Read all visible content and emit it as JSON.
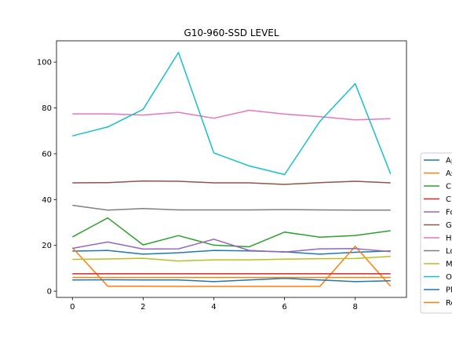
{
  "chart_data": {
    "type": "line",
    "title": "G10-960-SSD LEVEL",
    "xlabel": "",
    "ylabel": "",
    "xlim": [
      -0.45,
      9.45
    ],
    "ylim": [
      -2.7,
      109.3
    ],
    "xticks": [
      0,
      2,
      4,
      6,
      8
    ],
    "yticks": [
      0,
      20,
      40,
      60,
      80,
      100
    ],
    "x": [
      0,
      1,
      2,
      3,
      4,
      5,
      6,
      7,
      8,
      9
    ],
    "grid": false,
    "legend_position": "right",
    "series": [
      {
        "name": "Ap",
        "color": "#1f77b4",
        "values": [
          17.5,
          17.8,
          16.2,
          16.8,
          17.8,
          17.6,
          17.2,
          16.2,
          17.0,
          17.6
        ]
      },
      {
        "name": "As",
        "color": "#ff7f0e",
        "values": [
          19.0,
          2.2,
          2.2,
          2.1,
          2.1,
          2.1,
          2.1,
          2.1,
          19.6,
          2.2
        ]
      },
      {
        "name": "C",
        "color": "#2ca02c",
        "values": [
          23.7,
          32.0,
          20.2,
          24.3,
          20.1,
          19.4,
          25.8,
          23.6,
          24.3,
          26.4
        ]
      },
      {
        "name": "C",
        "color": "#d62728",
        "values": [
          7.6,
          7.6,
          7.6,
          7.6,
          7.6,
          7.6,
          7.6,
          7.6,
          7.6,
          7.6
        ]
      },
      {
        "name": "Fo",
        "color": "#9467bd",
        "values": [
          18.7,
          21.5,
          18.4,
          18.5,
          22.7,
          17.8,
          17.1,
          18.5,
          18.6,
          17.3
        ]
      },
      {
        "name": "G",
        "color": "#8c564b",
        "values": [
          47.3,
          47.4,
          48.1,
          48.0,
          47.3,
          47.3,
          46.6,
          47.4,
          48.0,
          47.3
        ]
      },
      {
        "name": "H",
        "color": "#e377c2",
        "values": [
          77.4,
          77.4,
          76.9,
          78.1,
          75.5,
          79.0,
          77.3,
          76.2,
          74.8,
          75.3
        ]
      },
      {
        "name": "Lo",
        "color": "#7f7f7f",
        "values": [
          37.5,
          35.4,
          36.1,
          35.5,
          35.5,
          35.5,
          35.6,
          35.5,
          35.4,
          35.4
        ]
      },
      {
        "name": "M",
        "color": "#bcbd22",
        "values": [
          13.9,
          14.1,
          14.4,
          13.2,
          13.7,
          13.7,
          14.0,
          14.2,
          14.3,
          15.2
        ]
      },
      {
        "name": "O",
        "color": "#17becf",
        "values": [
          67.8,
          71.7,
          79.4,
          104.2,
          60.4,
          54.7,
          50.9,
          74.1,
          90.6,
          51.2
        ]
      },
      {
        "name": "Pl",
        "color": "#1f77b4",
        "values": [
          4.9,
          5.0,
          4.9,
          4.9,
          4.2,
          4.9,
          5.6,
          4.9,
          4.2,
          4.6
        ]
      },
      {
        "name": "Ro",
        "color": "#ff7f0e",
        "values": [
          6.0,
          6.0,
          6.0,
          6.0,
          6.0,
          6.0,
          6.0,
          6.0,
          6.0,
          6.0
        ]
      }
    ]
  }
}
